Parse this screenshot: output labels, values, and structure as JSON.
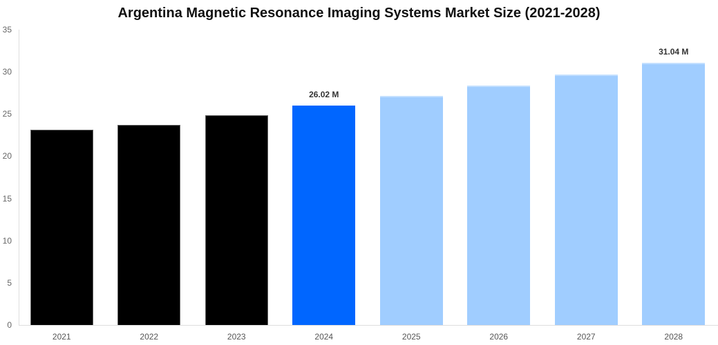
{
  "chart_data": {
    "type": "bar",
    "title": "Argentina Magnetic Resonance Imaging Systems Market Size (2021-2028)",
    "xlabel": "",
    "ylabel": "",
    "categories": [
      "2021",
      "2022",
      "2023",
      "2024",
      "2025",
      "2026",
      "2027",
      "2028"
    ],
    "values": [
      23.15,
      23.7,
      24.85,
      26.02,
      27.15,
      28.4,
      29.7,
      31.04
    ],
    "unit": "M",
    "ylim": [
      0,
      35
    ],
    "yticks": [
      "0",
      "5",
      "10",
      "15",
      "20",
      "25",
      "30",
      "35"
    ],
    "grid": false,
    "legend": null,
    "bar_kinds": [
      "historical",
      "historical",
      "historical",
      "current",
      "forecast",
      "forecast",
      "forecast",
      "forecast"
    ],
    "colors": {
      "historical": "#000000",
      "current": "#0066ff",
      "forecast": "#a0cdff"
    },
    "annotations": [
      {
        "category": "2024",
        "text": "26.02 M"
      },
      {
        "category": "2028",
        "text": "31.04 M"
      }
    ]
  }
}
